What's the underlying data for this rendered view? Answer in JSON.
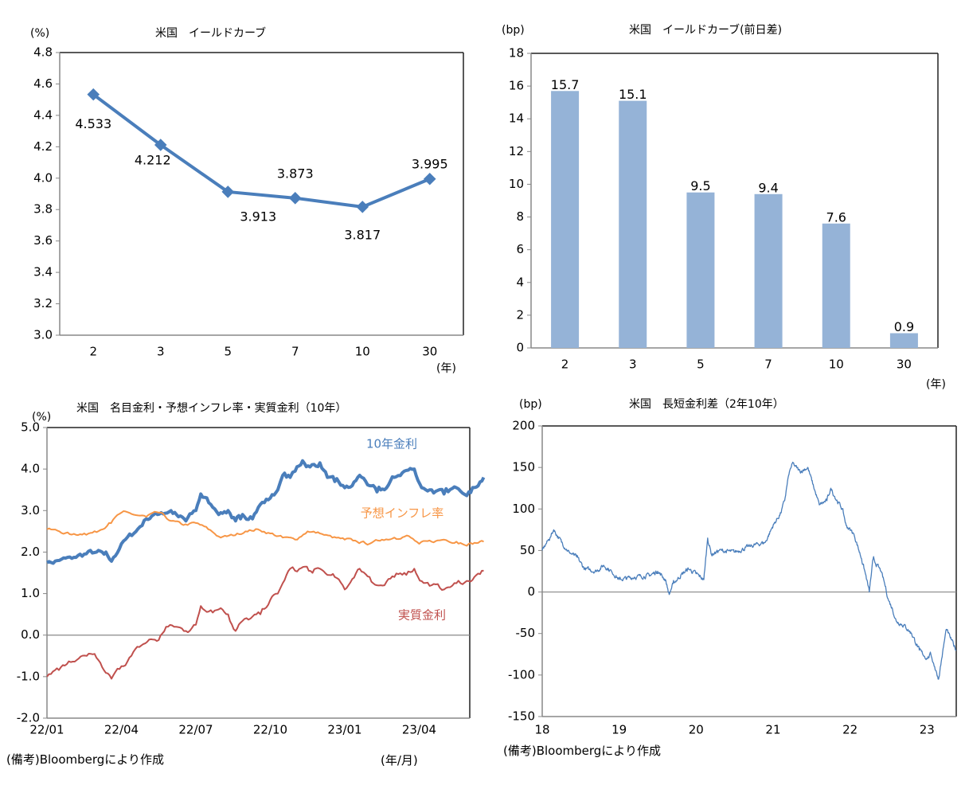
{
  "chart_data": [
    {
      "id": "yield-curve",
      "type": "line",
      "title": "米国　イールドカーブ",
      "ylabel": "(%)",
      "xlabel": "(年)",
      "categories": [
        "2",
        "3",
        "5",
        "7",
        "10",
        "30"
      ],
      "values": [
        4.533,
        4.212,
        3.913,
        3.873,
        3.817,
        3.995
      ],
      "data_labels": [
        "4.533",
        "4.212",
        "3.913",
        "3.873",
        "3.817",
        "3.995"
      ],
      "ylim": [
        3.0,
        4.8
      ],
      "yticks": [
        "3.0",
        "3.2",
        "3.4",
        "3.6",
        "3.8",
        "4.0",
        "4.2",
        "4.4",
        "4.6",
        "4.8"
      ],
      "grid": false,
      "color": "#4a7ebb"
    },
    {
      "id": "yield-change",
      "type": "bar",
      "title": "米国　イールドカーブ(前日差)",
      "ylabel": "(bp)",
      "xlabel": "(年)",
      "categories": [
        "2",
        "3",
        "5",
        "7",
        "10",
        "30"
      ],
      "values": [
        15.7,
        15.1,
        9.5,
        9.4,
        7.6,
        0.9
      ],
      "data_labels": [
        "15.7",
        "15.1",
        "9.5",
        "9.4",
        "7.6",
        "0.9"
      ],
      "ylim": [
        0,
        18
      ],
      "yticks": [
        "0",
        "2",
        "4",
        "6",
        "8",
        "10",
        "12",
        "14",
        "16",
        "18"
      ],
      "grid": false,
      "color": "#95b3d7"
    },
    {
      "id": "rates-10y",
      "type": "line",
      "title": "米国　名目金利・予想インフレ率・実質金利（10年）",
      "ylabel": "(%)",
      "xlabel": "(年/月)",
      "ylim": [
        -2.0,
        5.0
      ],
      "yticks": [
        "-2.0",
        "-1.0",
        "0.0",
        "1.0",
        "2.0",
        "3.0",
        "4.0",
        "5.0"
      ],
      "xticks": [
        "22/01",
        "22/04",
        "22/07",
        "22/10",
        "23/01",
        "23/04"
      ],
      "x_unit": "months since 2022-01",
      "xlim": [
        0,
        17.6
      ],
      "grid": false,
      "series": [
        {
          "name": "10年金利",
          "color": "#4a7ebb",
          "x": [
            0,
            0.5,
            1,
            1.5,
            2,
            2.3,
            2.6,
            3,
            3.5,
            4,
            4.3,
            4.6,
            5,
            5.3,
            5.6,
            6,
            6.2,
            6.6,
            7,
            7.3,
            7.6,
            7.8,
            8.2,
            8.6,
            9,
            9.3,
            9.5,
            9.8,
            10,
            10.3,
            10.6,
            11,
            11.3,
            11.6,
            12,
            12.3,
            12.6,
            13,
            13.3,
            13.6,
            14,
            14.4,
            14.8,
            15.1,
            15.5,
            16,
            16.5,
            17,
            17.6
          ],
          "values": [
            1.75,
            1.8,
            1.85,
            1.95,
            2.0,
            1.95,
            1.78,
            2.2,
            2.45,
            2.8,
            2.9,
            2.95,
            3.0,
            2.85,
            2.75,
            3.0,
            3.4,
            3.15,
            2.95,
            3.0,
            2.75,
            2.8,
            2.85,
            3.15,
            3.3,
            3.5,
            3.85,
            3.8,
            3.95,
            4.2,
            4.05,
            4.15,
            3.8,
            3.7,
            3.55,
            3.6,
            3.85,
            3.6,
            3.45,
            3.5,
            3.8,
            3.95,
            4.0,
            3.55,
            3.5,
            3.4,
            3.55,
            3.45,
            3.8
          ],
          "label": "10年金利"
        },
        {
          "name": "予想インフレ率",
          "color": "#f79646",
          "x": [
            0,
            0.5,
            1,
            1.5,
            2,
            2.5,
            3,
            3.5,
            4,
            4.5,
            5,
            5.5,
            6,
            6.5,
            7,
            7.5,
            8,
            8.5,
            9,
            9.5,
            10,
            10.5,
            11,
            11.5,
            12,
            12.5,
            13,
            13.5,
            14,
            14.5,
            15,
            15.5,
            16,
            16.5,
            17,
            17.6
          ],
          "values": [
            2.55,
            2.5,
            2.42,
            2.45,
            2.48,
            2.7,
            2.95,
            2.9,
            2.85,
            2.95,
            2.75,
            2.65,
            2.7,
            2.55,
            2.35,
            2.4,
            2.5,
            2.55,
            2.45,
            2.35,
            2.3,
            2.5,
            2.45,
            2.35,
            2.3,
            2.25,
            2.2,
            2.3,
            2.35,
            2.4,
            2.2,
            2.25,
            2.3,
            2.25,
            2.2,
            2.25
          ],
          "label": "予想インフレ率"
        },
        {
          "name": "実質金利",
          "color": "#c0504d",
          "x": [
            0,
            0.4,
            0.8,
            1.2,
            1.6,
            2,
            2.3,
            2.6,
            3,
            3.4,
            3.8,
            4.2,
            4.5,
            4.8,
            5.2,
            5.6,
            6,
            6.2,
            6.6,
            7,
            7.3,
            7.6,
            7.8,
            8.2,
            8.6,
            9,
            9.3,
            9.5,
            9.8,
            10,
            10.4,
            10.7,
            11,
            11.3,
            11.6,
            12,
            12.3,
            12.6,
            13,
            13.3,
            13.6,
            14,
            14.4,
            14.8,
            15.1,
            15.5,
            16,
            16.5,
            17,
            17.6
          ],
          "values": [
            -1.0,
            -0.8,
            -0.7,
            -0.6,
            -0.5,
            -0.55,
            -0.85,
            -1.05,
            -0.75,
            -0.5,
            -0.25,
            -0.1,
            -0.12,
            0.2,
            0.2,
            0.1,
            0.25,
            0.7,
            0.6,
            0.65,
            0.5,
            0.1,
            0.3,
            0.4,
            0.5,
            0.85,
            1.0,
            1.25,
            1.6,
            1.55,
            1.65,
            1.5,
            1.6,
            1.45,
            1.4,
            1.1,
            1.35,
            1.6,
            1.4,
            1.2,
            1.2,
            1.4,
            1.5,
            1.6,
            1.3,
            1.2,
            1.1,
            1.25,
            1.3,
            1.55
          ],
          "label": "実質金利"
        }
      ],
      "note": "(備考)Bloombergにより作成"
    },
    {
      "id": "spread-2s10s",
      "type": "line",
      "title": "米国　長短金利差（2年10年）",
      "ylabel": "(bp)",
      "ylim": [
        -150,
        200
      ],
      "yticks": [
        "-150",
        "-100",
        "-50",
        "0",
        "50",
        "100",
        "150",
        "200"
      ],
      "xticks": [
        "18",
        "19",
        "20",
        "21",
        "22",
        "23"
      ],
      "x_unit": "years since 2018",
      "xlim": [
        0,
        5.38
      ],
      "grid": false,
      "series": [
        {
          "name": "長短金利差",
          "color": "#4a7ebb",
          "x": [
            0,
            0.05,
            0.1,
            0.15,
            0.25,
            0.35,
            0.45,
            0.55,
            0.7,
            0.8,
            0.9,
            1.0,
            1.2,
            1.4,
            1.5,
            1.6,
            1.65,
            1.7,
            1.8,
            1.9,
            2.0,
            2.1,
            2.15,
            2.2,
            2.3,
            2.5,
            2.7,
            2.9,
            3.0,
            3.1,
            3.15,
            3.2,
            3.25,
            3.35,
            3.45,
            3.55,
            3.6,
            3.7,
            3.75,
            3.8,
            3.9,
            3.95,
            4.05,
            4.15,
            4.2,
            4.25,
            4.3,
            4.4,
            4.45,
            4.5,
            4.55,
            4.6,
            4.7,
            4.8,
            4.9,
            5.0,
            5.05,
            5.1,
            5.15,
            5.25,
            5.38
          ],
          "values": [
            50,
            58,
            65,
            75,
            60,
            48,
            42,
            28,
            25,
            32,
            25,
            15,
            18,
            20,
            25,
            15,
            -3,
            10,
            20,
            28,
            22,
            15,
            65,
            45,
            50,
            48,
            55,
            60,
            80,
            95,
            110,
            140,
            155,
            145,
            150,
            120,
            105,
            110,
            125,
            115,
            100,
            80,
            70,
            40,
            22,
            0,
            40,
            25,
            10,
            -10,
            -20,
            -35,
            -40,
            -50,
            -70,
            -80,
            -75,
            -90,
            -105,
            -45,
            -70
          ],
          "label": ""
        }
      ],
      "note": "(備考)Bloombergにより作成"
    }
  ],
  "texts": {
    "c1_title": "米国　イールドカーブ",
    "c1_unit": "(%)",
    "c1_xunit": "(年)",
    "c2_title": "米国　イールドカーブ(前日差)",
    "c2_unit": "(bp)",
    "c2_xunit": "(年)",
    "c3_title": "米国　名目金利・予想インフレ率・実質金利（10年）",
    "c3_unit": "(%)",
    "c3_xunit": "(年/月)",
    "c3_note": "(備考)Bloombergにより作成",
    "c4_title": "米国　長短金利差（2年10年）",
    "c4_unit": "(bp)",
    "c4_note": "(備考)Bloombergにより作成"
  }
}
